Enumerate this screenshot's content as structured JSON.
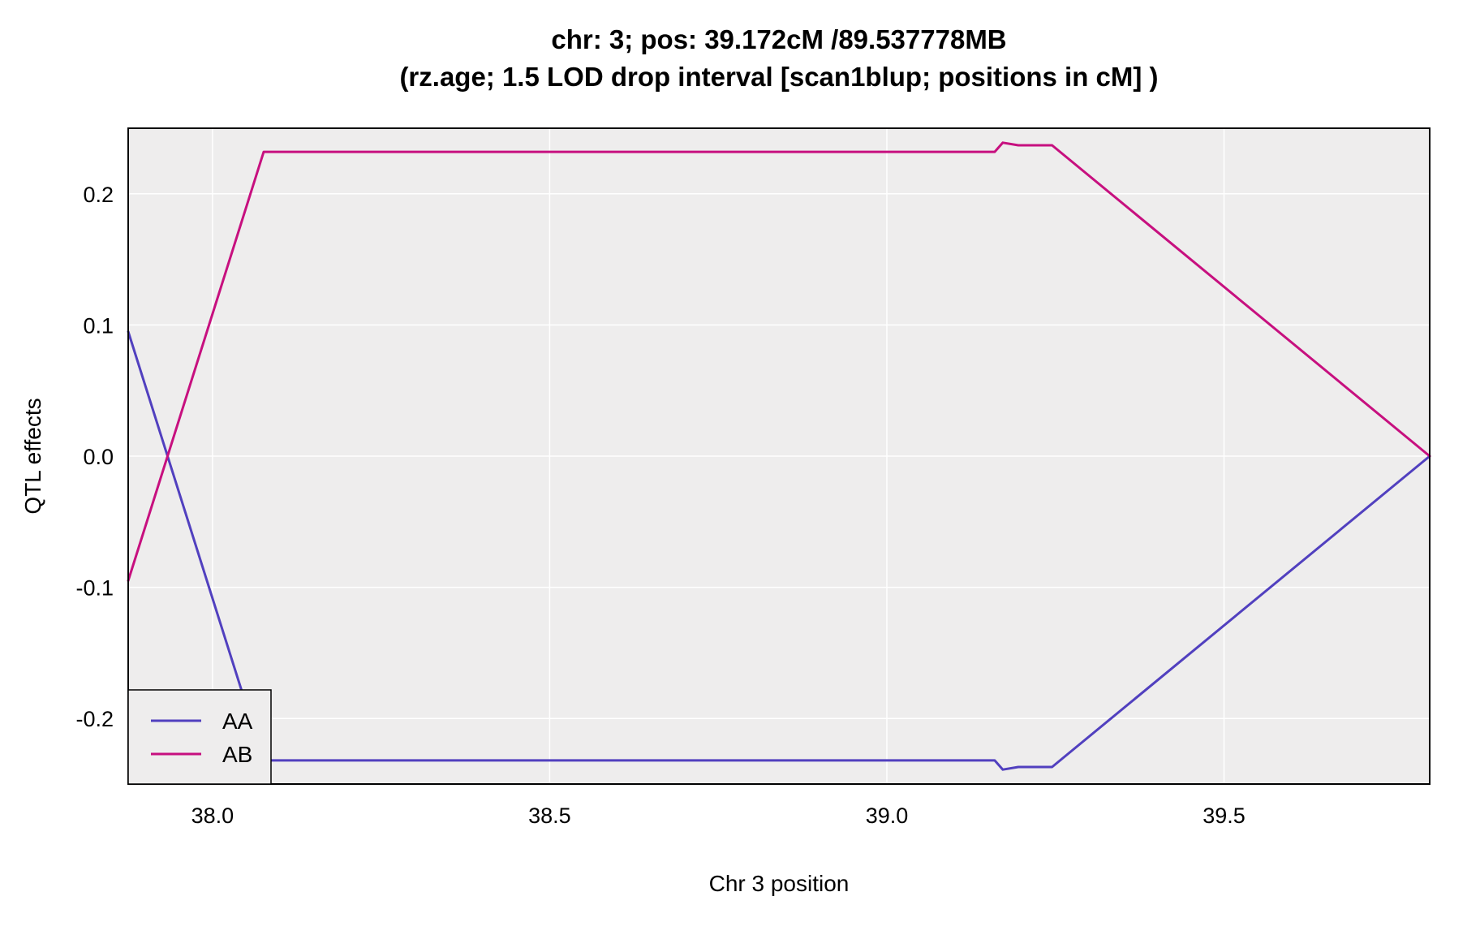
{
  "chart_data": {
    "type": "line",
    "title": "chr: 3; pos: 39.172cM /89.537778MB",
    "subtitle": "(rz.age; 1.5 LOD drop interval [scan1blup; positions in cM] )",
    "xlabel": "Chr 3 position",
    "ylabel": "QTL effects",
    "xlim": [
      37.875,
      39.805
    ],
    "ylim": [
      -0.25,
      0.25
    ],
    "x_ticks": [
      "38.0",
      "38.5",
      "39.0",
      "39.5"
    ],
    "x_tick_values": [
      38.0,
      38.5,
      39.0,
      39.5
    ],
    "y_ticks": [
      "-0.2",
      "-0.1",
      "0.0",
      "0.1",
      "0.2"
    ],
    "y_tick_values": [
      -0.2,
      -0.1,
      0.0,
      0.1,
      0.2
    ],
    "grid": true,
    "background": "#eeeded",
    "legend_position": "bottom-left",
    "series": [
      {
        "name": "AA",
        "color": "#5140bf",
        "x": [
          37.875,
          38.076,
          39.16,
          39.172,
          39.195,
          39.245,
          39.805
        ],
        "y": [
          0.095,
          -0.232,
          -0.232,
          -0.239,
          -0.237,
          -0.237,
          0.0
        ]
      },
      {
        "name": "AB",
        "color": "#c7107f",
        "x": [
          37.875,
          38.076,
          39.16,
          39.172,
          39.195,
          39.245,
          39.805
        ],
        "y": [
          -0.095,
          0.232,
          0.232,
          0.239,
          0.237,
          0.237,
          0.0
        ]
      }
    ]
  }
}
